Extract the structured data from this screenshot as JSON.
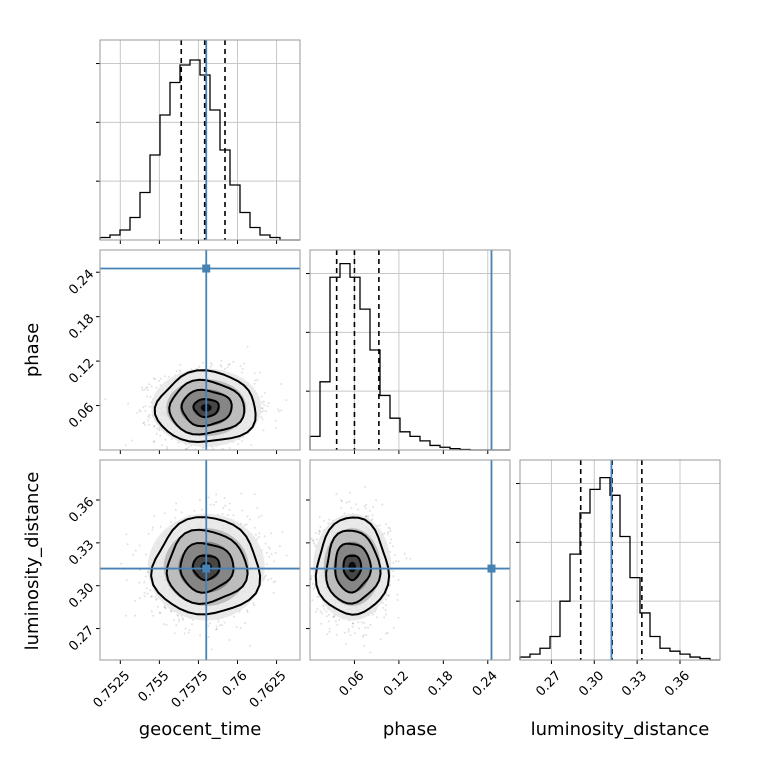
{
  "figure": {
    "colors": {
      "truth": "#4682b4",
      "frame": "#999999",
      "grid": "#c8c8c8",
      "hist": "#000000",
      "background": "#ffffff"
    }
  },
  "chart_data": [
    {
      "type": "histogram",
      "name": "geocent_time-marginal",
      "variable": "geocent_time",
      "xlim": [
        0.7512,
        0.764
      ],
      "xticks": [
        0.7525,
        0.755,
        0.7575,
        0.76,
        0.7625
      ],
      "bin_edges": [
        0.7512,
        0.75184,
        0.75248,
        0.75312,
        0.75376,
        0.7544,
        0.75504,
        0.75568,
        0.75632,
        0.75696,
        0.7576,
        0.75824,
        0.75888,
        0.75952,
        0.76016,
        0.7608,
        0.76144,
        0.76208,
        0.76272,
        0.76336,
        0.764
      ],
      "counts": [
        1,
        2,
        4,
        9,
        19,
        34,
        50,
        63,
        70,
        72,
        66,
        52,
        36,
        22,
        11,
        5,
        2,
        1,
        0,
        0
      ],
      "ylim": [
        0,
        80
      ],
      "quantiles": [
        0.7564,
        0.7579,
        0.7592
      ],
      "truth": 0.758,
      "grid": true
    },
    {
      "type": "histogram",
      "name": "phase-marginal",
      "variable": "phase",
      "xlim": [
        0.0,
        0.27
      ],
      "xticks": [
        0.06,
        0.12,
        0.18,
        0.24
      ],
      "bin_edges": [
        0.0,
        0.0135,
        0.027,
        0.0405,
        0.054,
        0.0675,
        0.081,
        0.0945,
        0.108,
        0.1215,
        0.135,
        0.1485,
        0.162,
        0.1755,
        0.189,
        0.2025,
        0.216,
        0.2295,
        0.243,
        0.2565,
        0.27
      ],
      "counts": [
        3,
        15,
        38,
        41,
        38,
        31,
        22,
        12,
        7,
        4,
        3,
        2,
        1,
        0.6,
        0.3,
        0.1,
        0,
        0,
        0,
        0
      ],
      "ylim": [
        0,
        44
      ],
      "quantiles": [
        0.036,
        0.06,
        0.093
      ],
      "truth": 0.245,
      "grid": true
    },
    {
      "type": "histogram",
      "name": "luminosity_distance-marginal",
      "variable": "luminosity_distance",
      "xlim": [
        0.248,
        0.388
      ],
      "xticks": [
        0.27,
        0.3,
        0.33,
        0.36
      ],
      "bin_edges": [
        0.248,
        0.255,
        0.262,
        0.269,
        0.276,
        0.283,
        0.29,
        0.297,
        0.304,
        0.311,
        0.318,
        0.325,
        0.332,
        0.339,
        0.346,
        0.353,
        0.36,
        0.367,
        0.374,
        0.381,
        0.388
      ],
      "counts": [
        1,
        2,
        4,
        8,
        20,
        36,
        50,
        58,
        62,
        56,
        42,
        28,
        16,
        8,
        4,
        3,
        2,
        1,
        0.5,
        0
      ],
      "ylim": [
        0,
        68
      ],
      "quantiles": [
        0.2905,
        0.3125,
        0.3333
      ],
      "truth": 0.312,
      "grid": true
    },
    {
      "type": "heatmap",
      "name": "geocent_time-vs-phase",
      "x_variable": "geocent_time",
      "y_variable": "phase",
      "xlim": [
        0.7512,
        0.764
      ],
      "ylim": [
        0.0,
        0.27
      ],
      "xticks": [
        0.7525,
        0.755,
        0.7575,
        0.76,
        0.7625
      ],
      "yticks": [
        0.06,
        0.12,
        0.18,
        0.24
      ],
      "center": [
        0.758,
        0.057
      ],
      "sigma": [
        0.0016,
        0.024
      ],
      "corr": 0,
      "truth": [
        0.758,
        0.245
      ]
    },
    {
      "type": "heatmap",
      "name": "geocent_time-vs-luminosity_distance",
      "x_variable": "geocent_time",
      "y_variable": "luminosity_distance",
      "xlim": [
        0.7512,
        0.764
      ],
      "ylim": [
        0.248,
        0.388
      ],
      "xticks": [
        0.7525,
        0.755,
        0.7575,
        0.76,
        0.7625
      ],
      "yticks": [
        0.27,
        0.3,
        0.33,
        0.36
      ],
      "center": [
        0.758,
        0.313
      ],
      "sigma": [
        0.0017,
        0.017
      ],
      "corr": 0.1,
      "truth": [
        0.758,
        0.312
      ]
    },
    {
      "type": "heatmap",
      "name": "phase-vs-luminosity_distance",
      "x_variable": "phase",
      "y_variable": "luminosity_distance",
      "xlim": [
        0.0,
        0.27
      ],
      "ylim": [
        0.248,
        0.388
      ],
      "xticks": [
        0.06,
        0.12,
        0.18,
        0.24
      ],
      "yticks": [
        0.27,
        0.3,
        0.33,
        0.36
      ],
      "center": [
        0.057,
        0.313
      ],
      "sigma": [
        0.024,
        0.017
      ],
      "corr": 0,
      "truth": [
        0.245,
        0.312
      ]
    }
  ],
  "labels": {
    "x": [
      "geocent_time",
      "phase",
      "luminosity_distance"
    ],
    "y": [
      "phase",
      "luminosity_distance"
    ]
  }
}
